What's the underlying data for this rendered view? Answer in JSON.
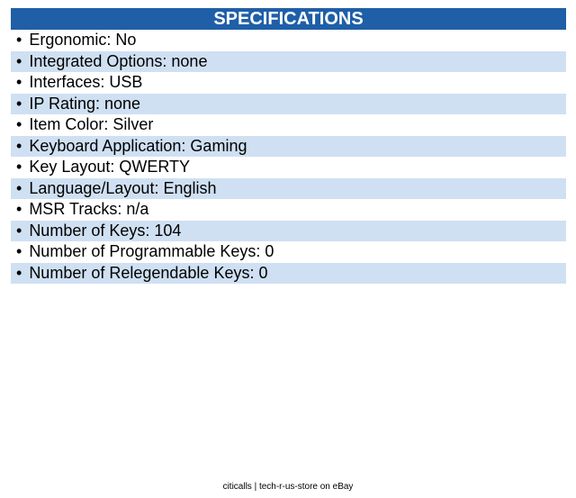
{
  "header": {
    "title": "SPECIFICATIONS"
  },
  "specs": [
    "Ergonomic: No",
    "Integrated Options: none",
    "Interfaces: USB",
    "IP Rating: none",
    "Item Color: Silver",
    "Keyboard Application: Gaming",
    "Key Layout: QWERTY",
    "Language/Layout: English",
    "MSR Tracks: n/a",
    "Number of Keys: 104",
    "Number of Programmable Keys: 0",
    "Number of Relegendable Keys: 0"
  ],
  "footer": "citicalls | tech-r-us-store on eBay"
}
